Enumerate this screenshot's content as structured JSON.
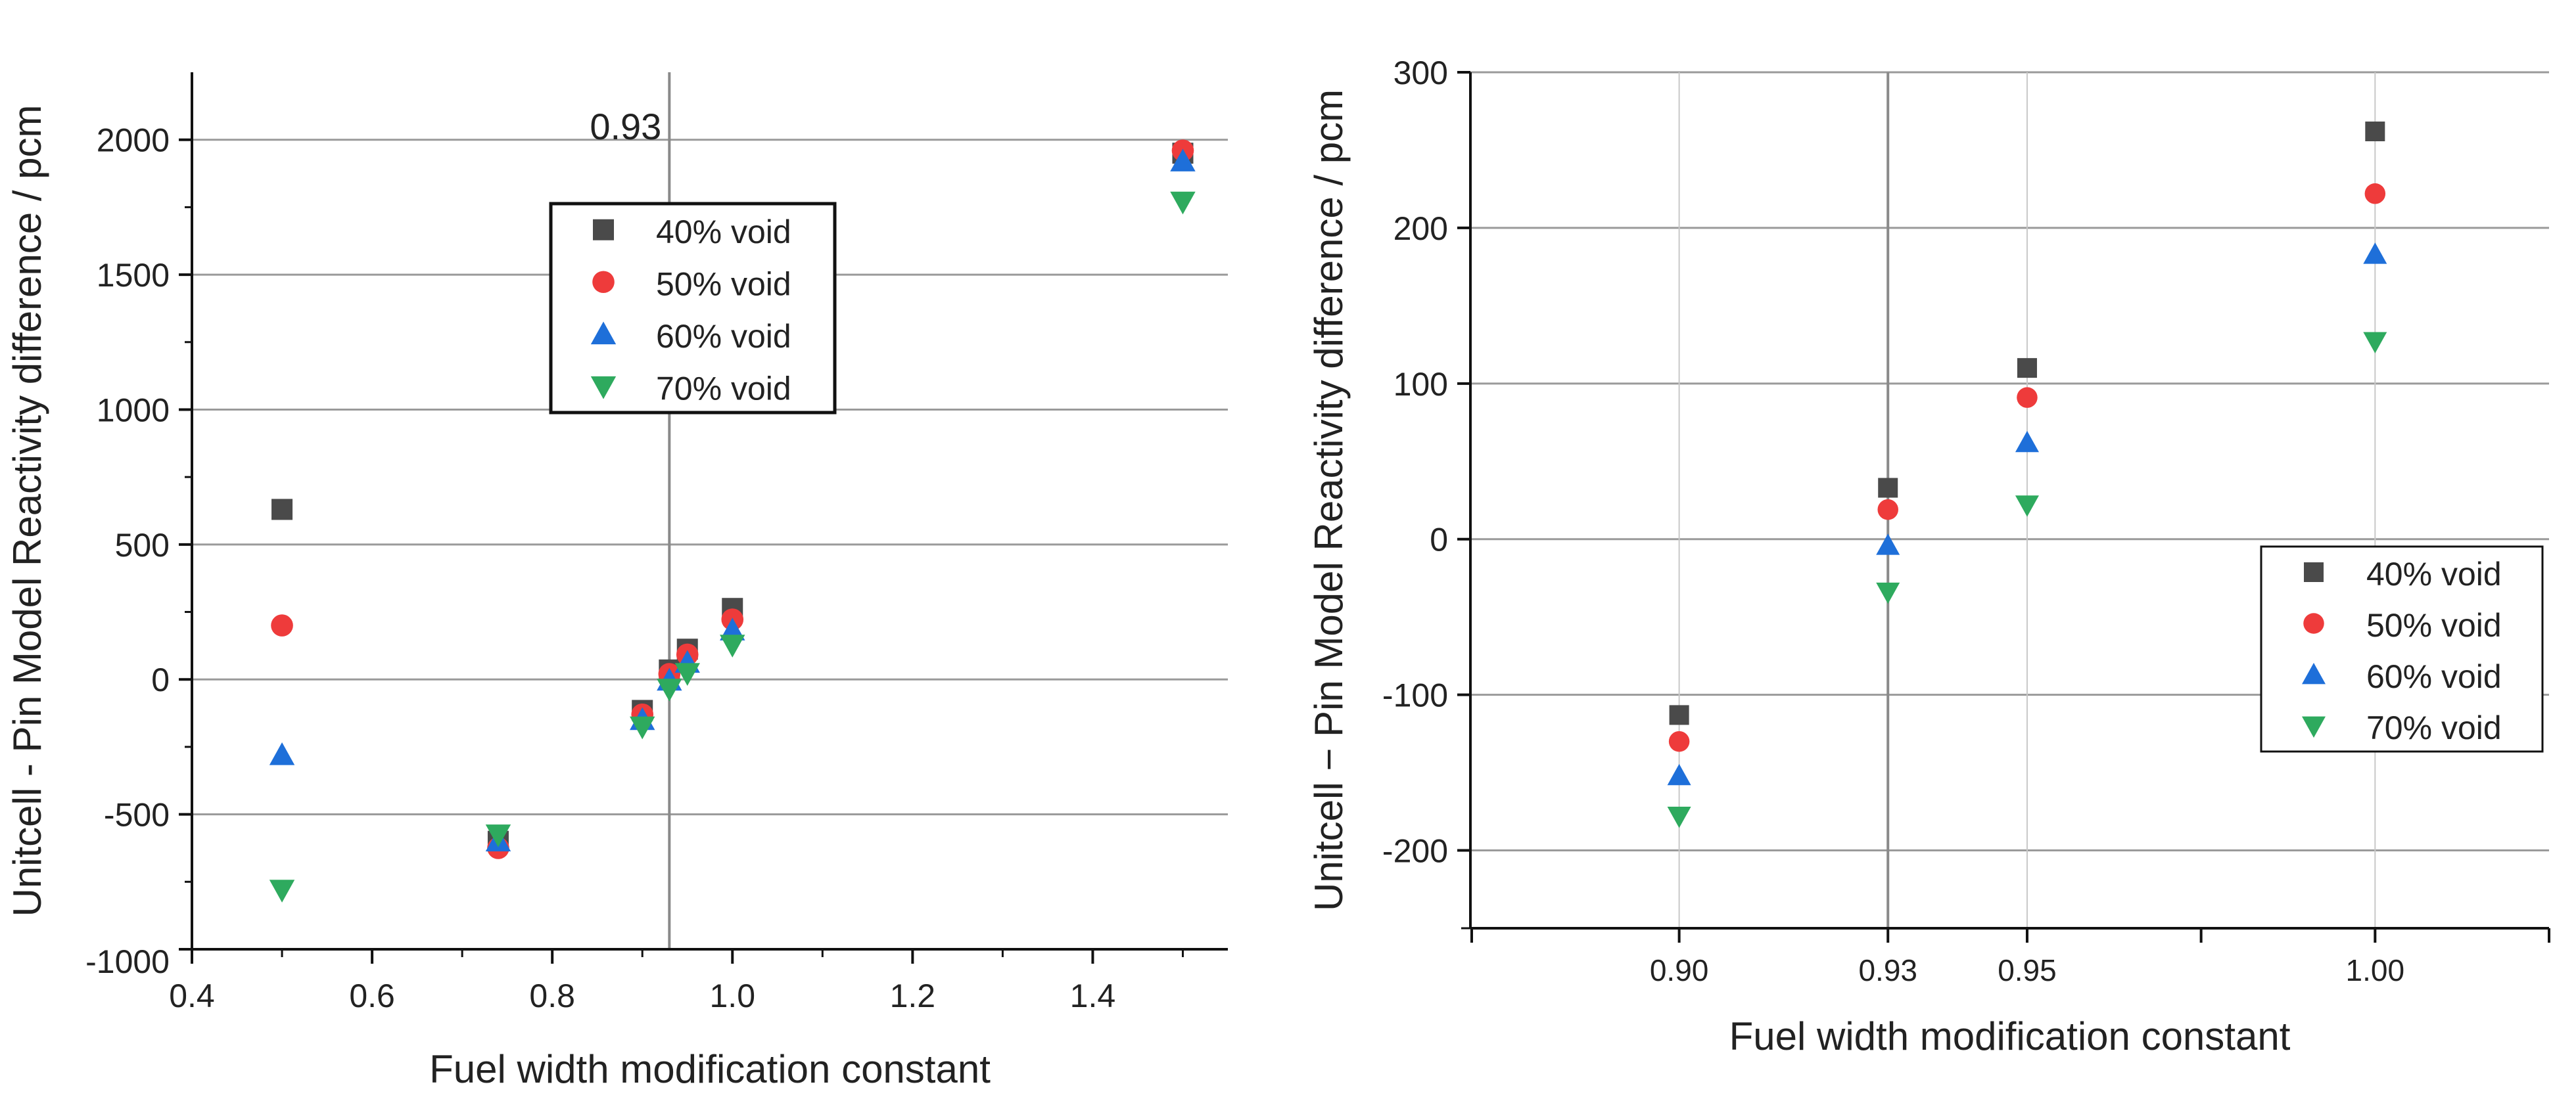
{
  "chart_data": [
    {
      "type": "scatter",
      "xlabel": "Fuel width modification constant",
      "ylabel": "Unitcell - Pin Model Reactivity difference / pcm",
      "xlim": [
        0.4,
        1.55
      ],
      "ylim": [
        -1000,
        2250
      ],
      "xticks": [
        0.4,
        0.6,
        0.8,
        1.0,
        1.2,
        1.4
      ],
      "xtick_labels": [
        "0.4",
        "0.6",
        "0.8",
        "1.0",
        "1.2",
        "1.4"
      ],
      "yticks": [
        -1000,
        -500,
        0,
        500,
        1000,
        1500,
        2000
      ],
      "ytick_labels": [
        "-1000",
        "-500",
        "0",
        "500",
        "1000",
        "1500",
        "2000"
      ],
      "grid": "horizontal",
      "reference_line": {
        "x": 0.93,
        "label": "0.93"
      },
      "legend_position": "top-center",
      "series": [
        {
          "name": "40% void",
          "marker": "square",
          "color": "#4a4a4a",
          "points": [
            [
              0.5,
              630
            ],
            [
              0.74,
              -600
            ],
            [
              0.9,
              -115
            ],
            [
              0.93,
              35
            ],
            [
              0.95,
              112
            ],
            [
              1.0,
              263
            ],
            [
              1.5,
              1950
            ]
          ]
        },
        {
          "name": "50% void",
          "marker": "circle",
          "color": "#ee3b3b",
          "points": [
            [
              0.5,
              200
            ],
            [
              0.74,
              -625
            ],
            [
              0.9,
              -130
            ],
            [
              0.93,
              20
            ],
            [
              0.95,
              92
            ],
            [
              1.0,
              222
            ],
            [
              1.5,
              1960
            ]
          ]
        },
        {
          "name": "60% void",
          "marker": "triangle-up",
          "color": "#1e6fd9",
          "points": [
            [
              0.5,
              -280
            ],
            [
              0.74,
              -600
            ],
            [
              0.9,
              -150
            ],
            [
              0.93,
              -4
            ],
            [
              0.95,
              62
            ],
            [
              1.0,
              182
            ],
            [
              1.5,
              1920
            ]
          ]
        },
        {
          "name": "70% void",
          "marker": "triangle-down",
          "color": "#2eaa5e",
          "points": [
            [
              0.5,
              -780
            ],
            [
              0.74,
              -575
            ],
            [
              0.9,
              -175
            ],
            [
              0.93,
              -35
            ],
            [
              0.95,
              23
            ],
            [
              1.0,
              128
            ],
            [
              1.5,
              1770
            ]
          ]
        }
      ]
    },
    {
      "type": "scatter",
      "xlabel": "Fuel width modification constant",
      "ylabel": "Unitcell − Pin Model Reactivity difference / pcm",
      "xlim": [
        0.87,
        1.025
      ],
      "ylim": [
        -250,
        300
      ],
      "xticks": [
        0.9,
        0.93,
        0.95,
        1.0
      ],
      "xtick_labels": [
        "0.90",
        "0.93",
        "0.95",
        "1.00"
      ],
      "minor_xticks": [
        0.975,
        1.025
      ],
      "yticks": [
        -200,
        -100,
        0,
        100,
        200,
        300
      ],
      "ytick_labels": [
        "-200",
        "-100",
        "0",
        "100",
        "200",
        "300"
      ],
      "grid": "both",
      "reference_line": {
        "x": 0.93
      },
      "legend_position": "center-right",
      "series": [
        {
          "name": "40% void",
          "marker": "square",
          "color": "#4a4a4a",
          "points": [
            [
              0.9,
              -113
            ],
            [
              0.93,
              33
            ],
            [
              0.95,
              110
            ],
            [
              1.0,
              262
            ]
          ]
        },
        {
          "name": "50% void",
          "marker": "circle",
          "color": "#ee3b3b",
          "points": [
            [
              0.9,
              -130
            ],
            [
              0.93,
              19
            ],
            [
              0.95,
              91
            ],
            [
              1.0,
              222
            ]
          ]
        },
        {
          "name": "60% void",
          "marker": "triangle-up",
          "color": "#1e6fd9",
          "points": [
            [
              0.9,
              -152
            ],
            [
              0.93,
              -4
            ],
            [
              0.95,
              62
            ],
            [
              1.0,
              183
            ]
          ]
        },
        {
          "name": "70% void",
          "marker": "triangle-down",
          "color": "#2eaa5e",
          "points": [
            [
              0.9,
              -178
            ],
            [
              0.93,
              -34
            ],
            [
              0.95,
              22
            ],
            [
              1.0,
              127
            ]
          ]
        }
      ]
    }
  ]
}
